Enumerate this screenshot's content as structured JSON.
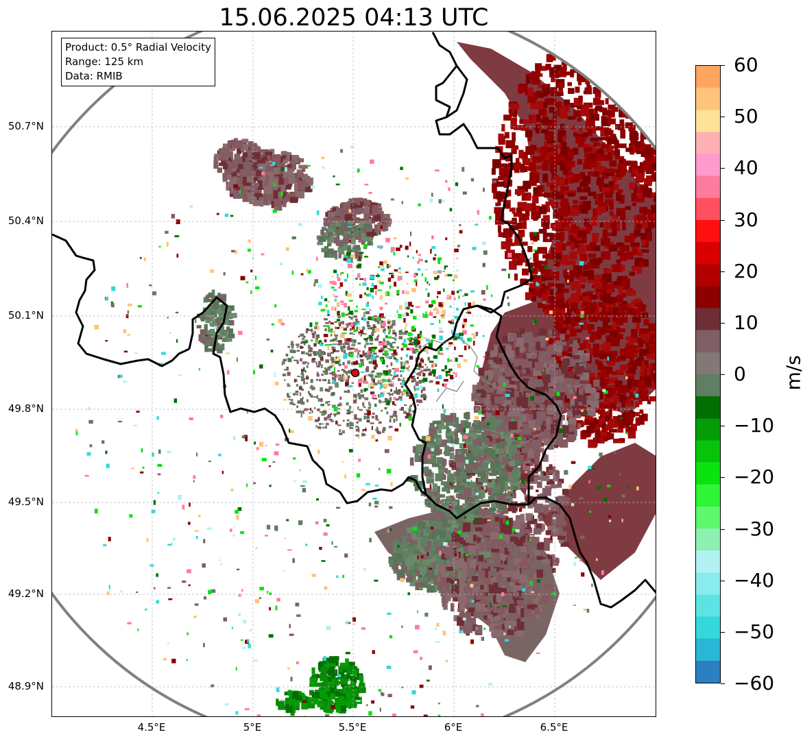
{
  "title": "15.06.2025 04:13 UTC",
  "info": {
    "product": "Product: 0.5° Radial Velocity",
    "range": "Range: 125 km",
    "source": "Data: RMIB"
  },
  "lat_labels": [
    "50.7°N",
    "50.4°N",
    "50.1°N",
    "49.8°N",
    "49.5°N",
    "49.2°N",
    "48.9°N"
  ],
  "lon_labels": [
    "4.5°E",
    "5°E",
    "5.5°E",
    "6°E",
    "6.5°E"
  ],
  "map": {
    "extent": {
      "lon_min": 4.0,
      "lon_max": 7.0,
      "lat_min": 48.8,
      "lat_max": 50.98
    },
    "radar_site": {
      "lon": 5.505,
      "lat": 49.915
    },
    "range_km": 125
  },
  "colorbar": {
    "unit": "m/s",
    "ticks": [
      "60",
      "50",
      "40",
      "30",
      "20",
      "10",
      "0",
      "−10",
      "−20",
      "−30",
      "−40",
      "−50",
      "−60"
    ],
    "min": -60,
    "max": 60,
    "colors": [
      "#2c7fc0",
      "#2ab6d5",
      "#35d8da",
      "#5ee3e3",
      "#89ebeb",
      "#b2f1f1",
      "#8df0b0",
      "#5ef76e",
      "#2ef535",
      "#0ae30f",
      "#06c40a",
      "#049c07",
      "#026e04",
      "#607e62",
      "#827977",
      "#7f5e65",
      "#6e2e35",
      "#8c0000",
      "#b20000",
      "#d80000",
      "#ff1010",
      "#ff5060",
      "#ff7b9d",
      "#ff9acd",
      "#ffb0b5",
      "#ffe29a",
      "#ffc37a",
      "#ffa560"
    ]
  }
}
